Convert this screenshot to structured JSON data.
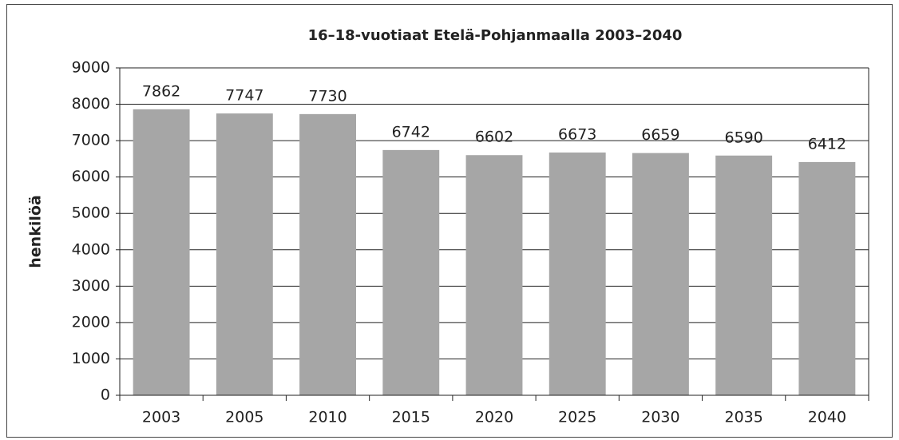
{
  "chart_data": {
    "type": "bar",
    "title": "16–18-vuotiaat Etelä-Pohjanmaalla 2003–2040",
    "ylabel": "henkilöä",
    "categories": [
      "2003",
      "2005",
      "2010",
      "2015",
      "2020",
      "2025",
      "2030",
      "2035",
      "2040"
    ],
    "values": [
      7862,
      7747,
      7730,
      6742,
      6602,
      6673,
      6659,
      6590,
      6412
    ],
    "color": "#a6a6a6",
    "ylim": [
      0,
      9000
    ],
    "yticks": [
      0,
      1000,
      2000,
      3000,
      4000,
      5000,
      6000,
      7000,
      8000,
      9000
    ],
    "grid": true
  }
}
